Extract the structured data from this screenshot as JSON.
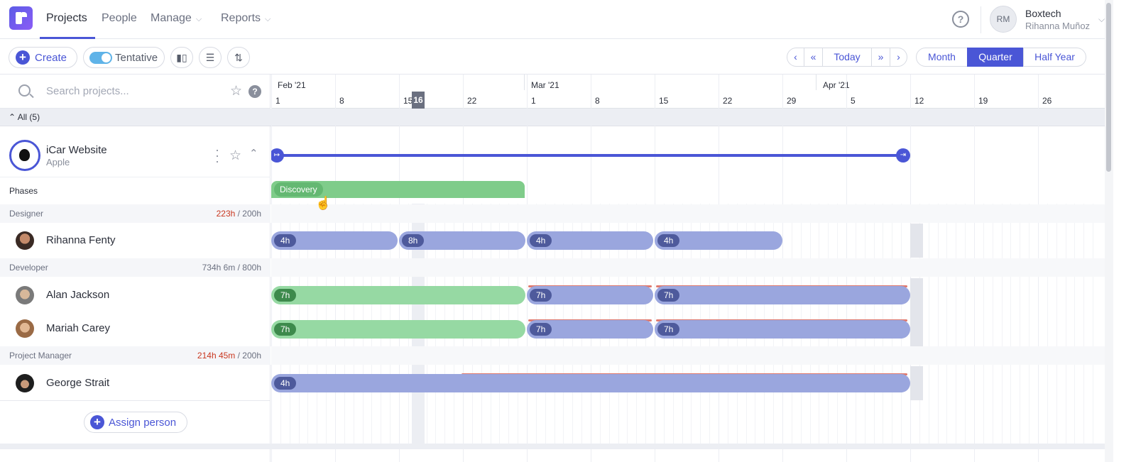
{
  "nav": {
    "items": [
      {
        "label": "Projects"
      },
      {
        "label": "People"
      },
      {
        "label": "Manage"
      },
      {
        "label": "Reports"
      }
    ],
    "help": "?",
    "avatar_initials": "RM",
    "org": "Boxtech",
    "user": "Rihanna Muñoz"
  },
  "toolbar": {
    "create": "Create",
    "tentative": "Tentative",
    "today": "Today",
    "views": [
      "Month",
      "Quarter",
      "Half Year"
    ],
    "active_view": "Quarter"
  },
  "left": {
    "search_placeholder": "Search projects...",
    "all_label": "All (5)",
    "project": {
      "name": "iCar Website",
      "client": "Apple"
    },
    "phases_label": "Phases",
    "groups": [
      {
        "role": "Designer",
        "used": "223h",
        "total": " / 200h",
        "over": true
      },
      {
        "role": "Developer",
        "used": "734h 6m",
        "total": " / 800h",
        "over": false
      },
      {
        "role": "Project Manager",
        "used": "214h 45m",
        "total": " / 200h",
        "over": true
      }
    ],
    "people": [
      "Rihanna Fenty",
      "Alan Jackson",
      "Mariah Carey",
      "George Strait"
    ],
    "assign": "Assign person"
  },
  "timeline": {
    "months": [
      "Feb '21",
      "Mar '21",
      "Apr '21"
    ],
    "days": [
      "1",
      "8",
      "15",
      "22",
      "1",
      "8",
      "15",
      "22",
      "29",
      "5",
      "12",
      "19",
      "26"
    ],
    "today": "16",
    "phase": "Discovery",
    "rihanna": [
      "4h",
      "8h",
      "4h",
      "4h"
    ],
    "alan": [
      "7h",
      "7h",
      "7h"
    ],
    "mariah": [
      "7h",
      "7h",
      "7h"
    ],
    "george": [
      "4h"
    ]
  },
  "colors": {
    "accent": "#4a56d6",
    "phase": "#7fcc8a",
    "assignment": "#9aa6de",
    "over": "#c9371f"
  }
}
